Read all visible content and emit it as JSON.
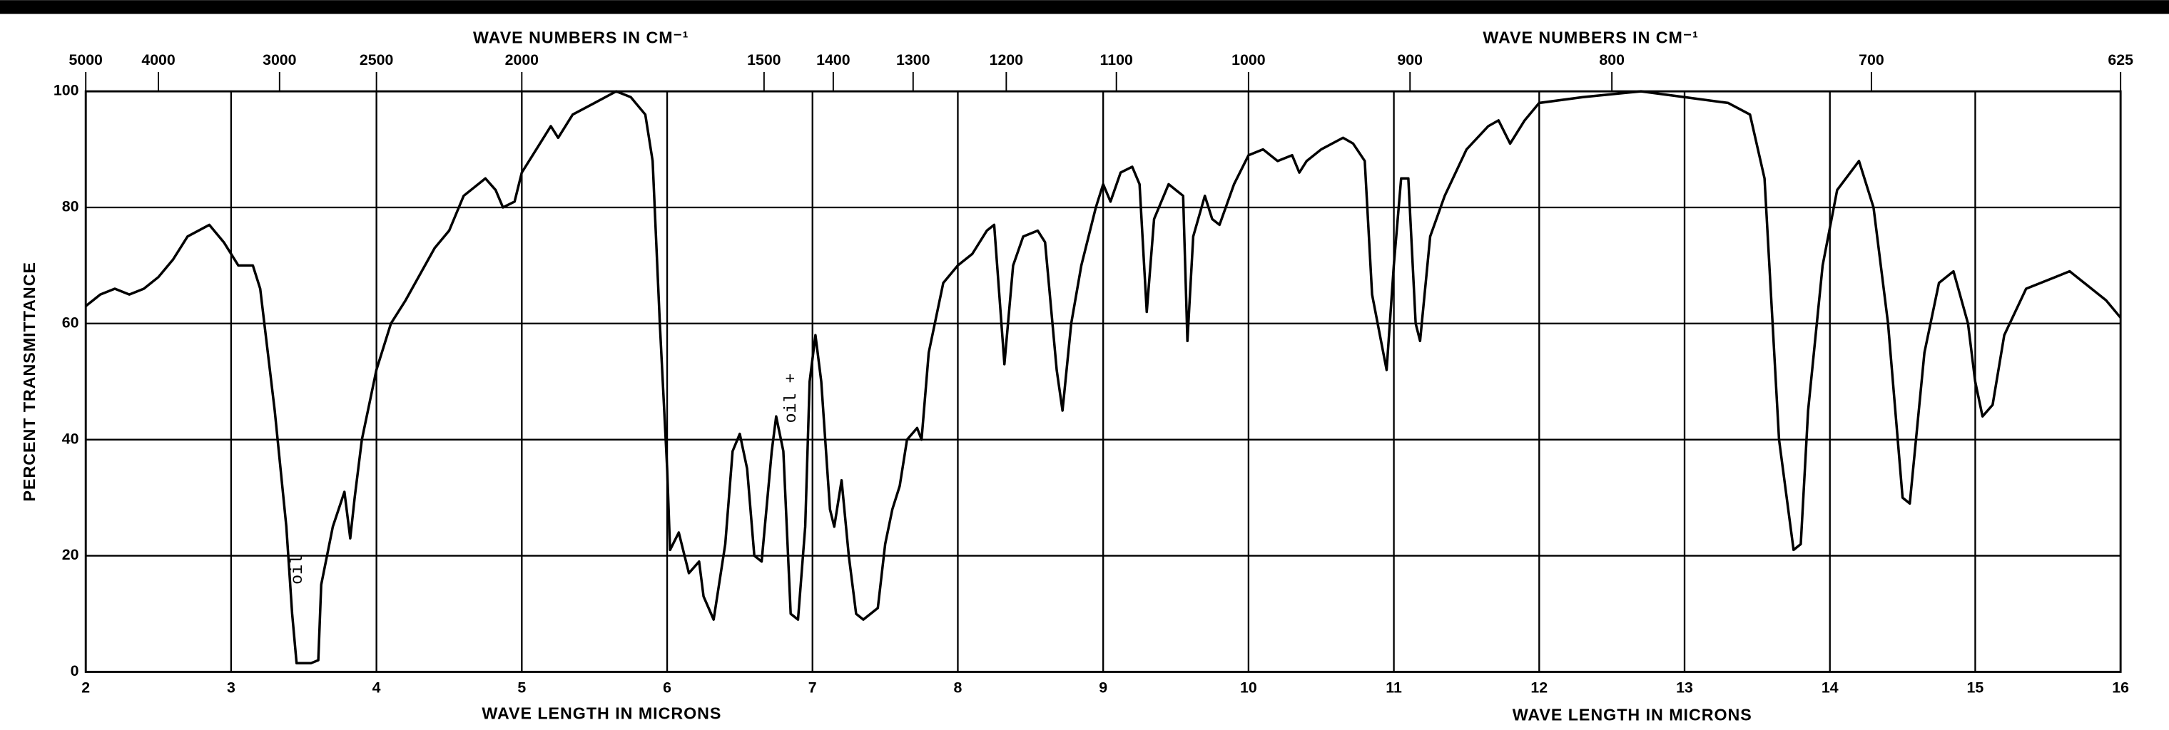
{
  "chart_data": {
    "type": "line",
    "ylabel": "PERCENT TRANSMITTANCE",
    "xlabel": "WAVE LENGTH IN MICRONS",
    "x2label": "WAVE NUMBERS IN CM⁻¹",
    "annotations": [
      "oil",
      "oil +"
    ],
    "xlim": [
      2,
      16
    ],
    "xticks": [
      2,
      3,
      4,
      5,
      6,
      7,
      8,
      9,
      10,
      11,
      12,
      13,
      14,
      15,
      16
    ],
    "ylim": [
      0,
      100
    ],
    "yticks": [
      0,
      20,
      40,
      60,
      80,
      100
    ],
    "x2scale": "reciprocal",
    "x2lim": [
      5000,
      625
    ],
    "x2ticks": [
      5000,
      4000,
      3000,
      2500,
      2000,
      1500,
      1400,
      1300,
      1200,
      1100,
      1000,
      900,
      800,
      700,
      625
    ],
    "grid": true,
    "color": "#000000",
    "x": [
      2.0,
      2.1,
      2.2,
      2.3,
      2.4,
      2.5,
      2.6,
      2.7,
      2.85,
      2.95,
      3.05,
      3.15,
      3.2,
      3.3,
      3.38,
      3.42,
      3.45,
      3.55,
      3.6,
      3.62,
      3.7,
      3.78,
      3.82,
      3.85,
      3.9,
      4.0,
      4.1,
      4.2,
      4.4,
      4.5,
      4.6,
      4.7,
      4.75,
      4.82,
      4.87,
      4.95,
      5.0,
      5.1,
      5.2,
      5.25,
      5.35,
      5.5,
      5.65,
      5.75,
      5.85,
      5.9,
      5.95,
      6.0,
      6.02,
      6.08,
      6.15,
      6.22,
      6.25,
      6.32,
      6.4,
      6.45,
      6.5,
      6.55,
      6.6,
      6.65,
      6.72,
      6.75,
      6.8,
      6.85,
      6.9,
      6.95,
      6.98,
      7.02,
      7.06,
      7.12,
      7.15,
      7.2,
      7.25,
      7.3,
      7.35,
      7.45,
      7.5,
      7.55,
      7.6,
      7.65,
      7.72,
      7.75,
      7.8,
      7.9,
      8.0,
      8.1,
      8.2,
      8.25,
      8.32,
      8.38,
      8.45,
      8.55,
      8.6,
      8.68,
      8.72,
      8.78,
      8.85,
      8.95,
      9.0,
      9.05,
      9.12,
      9.2,
      9.25,
      9.3,
      9.35,
      9.45,
      9.55,
      9.58,
      9.62,
      9.7,
      9.75,
      9.8,
      9.9,
      10.0,
      10.1,
      10.2,
      10.3,
      10.35,
      10.4,
      10.5,
      10.65,
      10.72,
      10.8,
      10.85,
      10.95,
      11.0,
      11.05,
      11.1,
      11.15,
      11.18,
      11.25,
      11.35,
      11.5,
      11.65,
      11.72,
      11.8,
      11.9,
      12.0,
      12.3,
      12.7,
      13.0,
      13.3,
      13.45,
      13.55,
      13.65,
      13.75,
      13.8,
      13.85,
      13.95,
      14.05,
      14.2,
      14.3,
      14.4,
      14.5,
      14.55,
      14.65,
      14.75,
      14.85,
      14.95,
      15.0,
      15.05,
      15.12,
      15.2,
      15.35,
      15.55,
      15.65,
      15.8,
      15.9,
      16.0
    ],
    "values": [
      63,
      65,
      66,
      65,
      66,
      68,
      71,
      75,
      77,
      74,
      70,
      70,
      66,
      45,
      25,
      10,
      1.5,
      1.5,
      2,
      15,
      25,
      31,
      23,
      30,
      40,
      52,
      60,
      64,
      73,
      76,
      82,
      84,
      85,
      83,
      80,
      81,
      86,
      90,
      94,
      92,
      96,
      98,
      100,
      99,
      96,
      88,
      60,
      35,
      21,
      24,
      17,
      19,
      13,
      9,
      22,
      38,
      41,
      35,
      20,
      19,
      38,
      44,
      38,
      10,
      9,
      25,
      50,
      58,
      50,
      28,
      25,
      33,
      20,
      10,
      9,
      11,
      22,
      28,
      32,
      40,
      42,
      40,
      55,
      67,
      70,
      72,
      76,
      77,
      53,
      70,
      75,
      76,
      74,
      52,
      45,
      60,
      70,
      80,
      84,
      81,
      86,
      87,
      84,
      62,
      78,
      84,
      82,
      57,
      75,
      82,
      78,
      77,
      84,
      89,
      90,
      88,
      89,
      86,
      88,
      90,
      92,
      91,
      88,
      65,
      52,
      70,
      85,
      85,
      60,
      57,
      75,
      82,
      90,
      94,
      95,
      91,
      95,
      98,
      99,
      100,
      99,
      98,
      96,
      85,
      40,
      21,
      22,
      45,
      70,
      83,
      88,
      80,
      60,
      30,
      29,
      55,
      67,
      69,
      60,
      50,
      44,
      46,
      58,
      66,
      68,
      69,
      66,
      64,
      61
    ]
  }
}
